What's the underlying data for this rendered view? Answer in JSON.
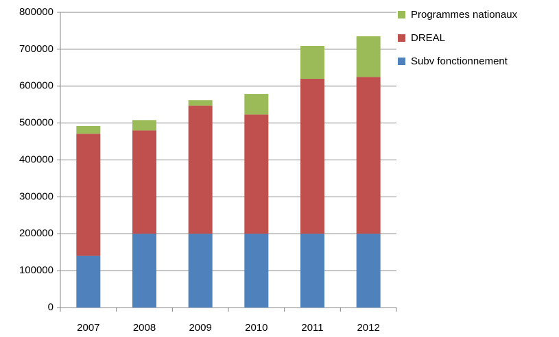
{
  "chart_data": {
    "type": "stacked_bar",
    "categories": [
      "2007",
      "2008",
      "2009",
      "2010",
      "2011",
      "2012"
    ],
    "series": [
      {
        "name": "Subv fonctionnement",
        "color": "#4f81bd",
        "values": [
          140000,
          200000,
          200000,
          200000,
          200000,
          200000
        ]
      },
      {
        "name": "DREAL",
        "color": "#c0504d",
        "values": [
          331000,
          280000,
          347000,
          323000,
          420000,
          425000
        ]
      },
      {
        "name": "Programmes nationaux",
        "color": "#9bbb59",
        "values": [
          21000,
          28000,
          15000,
          56000,
          89000,
          110000
        ]
      }
    ],
    "ylim": [
      0,
      800000
    ],
    "yticks": [
      0,
      100000,
      200000,
      300000,
      400000,
      500000,
      600000,
      700000,
      800000
    ],
    "grid": true
  }
}
